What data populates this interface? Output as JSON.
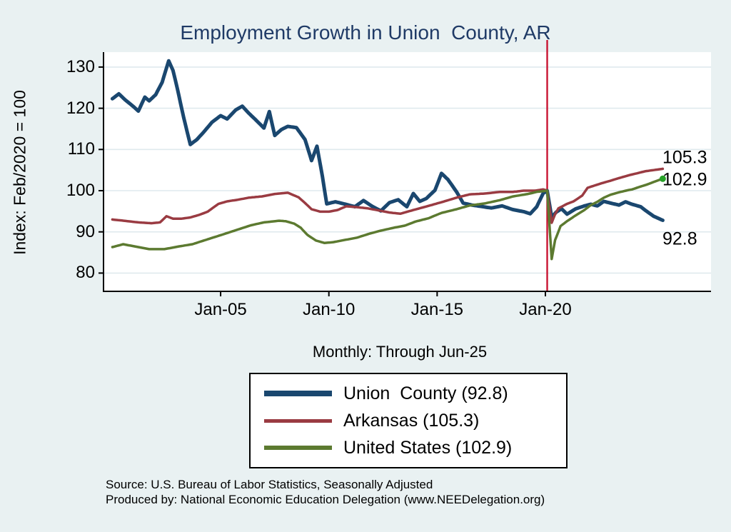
{
  "title": "Employment Growth in Union  County, AR",
  "subtitle": "Monthly: Through Jun-25",
  "y_axis_title": "Index: Feb/2020 = 100",
  "source_line1": "Source: U.S. Bureau of Labor Statistics, Seasonally Adjusted",
  "source_line2": "Produced by: National Economic Education Delegation (www.NEEDelegation.org)",
  "colors": {
    "background": "#e9f1f2",
    "plot_background": "#ffffff",
    "gridline": "#dfeaee",
    "axis": "#000000",
    "title_text": "#1f3a66",
    "union_county": "#1a476f",
    "arkansas": "#9a3b42",
    "united_states": "#5c7a30",
    "event_line": "#c81432",
    "end_marker": "#27a127"
  },
  "end_labels": {
    "arkansas": "105.3",
    "united_states": "102.9",
    "union_county": "92.8"
  },
  "legend": [
    {
      "label": "Union  County (92.8)",
      "series": "union_county",
      "color": "#1a476f",
      "swatch_height": 8
    },
    {
      "label": "Arkansas (105.3)",
      "series": "arkansas",
      "color": "#9a3b42",
      "swatch_height": 5
    },
    {
      "label": "United States (102.9)",
      "series": "united_states",
      "color": "#5c7a30",
      "swatch_height": 6
    }
  ],
  "chart_data": {
    "type": "line",
    "title": "Employment Growth in Union  County, AR",
    "subtitle": "Monthly: Through Jun-25",
    "ylabel": "Index: Feb/2020 = 100",
    "ylim": [
      76.5,
      134
    ],
    "xlim": [
      1999.8,
      2027.6
    ],
    "grid": "horizontal",
    "legend_position": "bottom",
    "y_ticks": [
      80,
      90,
      100,
      110,
      120,
      130
    ],
    "x_ticks": [
      {
        "label": "Jan-05",
        "t": 2005
      },
      {
        "label": "Jan-10",
        "t": 2010
      },
      {
        "label": "Jan-15",
        "t": 2015
      },
      {
        "label": "Jan-20",
        "t": 2020
      }
    ],
    "vline": {
      "t": 2020.083,
      "color": "#c81432",
      "meaning_label": ""
    },
    "series": [
      {
        "name": "Union  County (92.8)",
        "color": "#1a476f",
        "width": 5,
        "end_value": 92.8,
        "points": [
          [
            2000.0,
            122.3
          ],
          [
            2000.3,
            123.5
          ],
          [
            2000.6,
            122.0
          ],
          [
            2001.0,
            120.3
          ],
          [
            2001.2,
            119.3
          ],
          [
            2001.5,
            122.7
          ],
          [
            2001.7,
            121.8
          ],
          [
            2002.0,
            123.3
          ],
          [
            2002.3,
            126.3
          ],
          [
            2002.6,
            131.5
          ],
          [
            2002.8,
            129.2
          ],
          [
            2003.0,
            124.8
          ],
          [
            2003.3,
            117.6
          ],
          [
            2003.6,
            111.2
          ],
          [
            2003.9,
            112.4
          ],
          [
            2004.2,
            114.1
          ],
          [
            2004.6,
            116.6
          ],
          [
            2005.0,
            118.2
          ],
          [
            2005.3,
            117.4
          ],
          [
            2005.7,
            119.6
          ],
          [
            2006.0,
            120.5
          ],
          [
            2006.3,
            118.8
          ],
          [
            2006.6,
            117.3
          ],
          [
            2007.0,
            115.2
          ],
          [
            2007.25,
            119.2
          ],
          [
            2007.5,
            113.4
          ],
          [
            2007.8,
            114.8
          ],
          [
            2008.1,
            115.6
          ],
          [
            2008.5,
            115.3
          ],
          [
            2008.9,
            112.4
          ],
          [
            2009.2,
            107.3
          ],
          [
            2009.45,
            110.8
          ],
          [
            2009.7,
            103.5
          ],
          [
            2009.9,
            96.8
          ],
          [
            2010.3,
            97.3
          ],
          [
            2010.7,
            96.8
          ],
          [
            2011.2,
            96.1
          ],
          [
            2011.6,
            97.6
          ],
          [
            2012.0,
            96.2
          ],
          [
            2012.4,
            95.1
          ],
          [
            2012.8,
            97.1
          ],
          [
            2013.2,
            97.8
          ],
          [
            2013.6,
            96.1
          ],
          [
            2013.9,
            99.3
          ],
          [
            2014.2,
            97.4
          ],
          [
            2014.5,
            98.1
          ],
          [
            2014.9,
            100.1
          ],
          [
            2015.2,
            104.2
          ],
          [
            2015.5,
            102.7
          ],
          [
            2015.9,
            99.7
          ],
          [
            2016.2,
            97.0
          ],
          [
            2016.6,
            96.5
          ],
          [
            2017.0,
            96.2
          ],
          [
            2017.5,
            95.8
          ],
          [
            2018.0,
            96.3
          ],
          [
            2018.5,
            95.4
          ],
          [
            2019.0,
            94.9
          ],
          [
            2019.3,
            94.4
          ],
          [
            2019.6,
            96.1
          ],
          [
            2019.9,
            99.4
          ],
          [
            2020.083,
            100.0
          ],
          [
            2020.29,
            93.5
          ],
          [
            2020.5,
            94.8
          ],
          [
            2020.75,
            95.6
          ],
          [
            2021.0,
            94.3
          ],
          [
            2021.4,
            95.6
          ],
          [
            2021.8,
            96.3
          ],
          [
            2022.1,
            96.7
          ],
          [
            2022.4,
            96.3
          ],
          [
            2022.7,
            97.4
          ],
          [
            2023.0,
            97.0
          ],
          [
            2023.4,
            96.5
          ],
          [
            2023.7,
            97.3
          ],
          [
            2024.0,
            96.7
          ],
          [
            2024.4,
            96.1
          ],
          [
            2024.7,
            94.9
          ],
          [
            2025.0,
            93.8
          ],
          [
            2025.25,
            93.2
          ],
          [
            2025.42,
            92.8
          ]
        ]
      },
      {
        "name": "Arkansas (105.3)",
        "color": "#9a3b42",
        "width": 3.5,
        "end_value": 105.3,
        "points": [
          [
            2000.0,
            93.0
          ],
          [
            2000.7,
            92.6
          ],
          [
            2001.2,
            92.3
          ],
          [
            2001.8,
            92.1
          ],
          [
            2002.2,
            92.3
          ],
          [
            2002.5,
            93.8
          ],
          [
            2002.8,
            93.2
          ],
          [
            2003.2,
            93.2
          ],
          [
            2003.6,
            93.5
          ],
          [
            2004.0,
            94.1
          ],
          [
            2004.4,
            94.9
          ],
          [
            2004.9,
            96.8
          ],
          [
            2005.3,
            97.4
          ],
          [
            2005.8,
            97.8
          ],
          [
            2006.3,
            98.3
          ],
          [
            2006.9,
            98.6
          ],
          [
            2007.5,
            99.2
          ],
          [
            2008.1,
            99.5
          ],
          [
            2008.6,
            98.4
          ],
          [
            2008.9,
            97.0
          ],
          [
            2009.2,
            95.5
          ],
          [
            2009.6,
            94.9
          ],
          [
            2010.0,
            94.9
          ],
          [
            2010.4,
            95.3
          ],
          [
            2010.8,
            96.2
          ],
          [
            2011.3,
            96.0
          ],
          [
            2011.8,
            95.7
          ],
          [
            2012.3,
            95.2
          ],
          [
            2012.8,
            94.7
          ],
          [
            2013.3,
            94.4
          ],
          [
            2013.9,
            95.3
          ],
          [
            2014.6,
            96.3
          ],
          [
            2015.2,
            97.2
          ],
          [
            2015.9,
            98.3
          ],
          [
            2016.5,
            99.1
          ],
          [
            2017.2,
            99.3
          ],
          [
            2017.9,
            99.7
          ],
          [
            2018.5,
            99.7
          ],
          [
            2019.0,
            100.0
          ],
          [
            2019.5,
            100.0
          ],
          [
            2019.9,
            100.3
          ],
          [
            2020.083,
            100.0
          ],
          [
            2020.29,
            92.2
          ],
          [
            2020.45,
            94.3
          ],
          [
            2020.6,
            95.7
          ],
          [
            2021.0,
            96.8
          ],
          [
            2021.3,
            97.4
          ],
          [
            2021.7,
            98.8
          ],
          [
            2021.95,
            100.7
          ],
          [
            2022.3,
            101.3
          ],
          [
            2022.6,
            101.8
          ],
          [
            2023.0,
            102.4
          ],
          [
            2023.3,
            102.9
          ],
          [
            2023.9,
            103.8
          ],
          [
            2024.3,
            104.3
          ],
          [
            2024.6,
            104.7
          ],
          [
            2025.0,
            105.0
          ],
          [
            2025.42,
            105.3
          ]
        ]
      },
      {
        "name": "United States (102.9)",
        "color": "#5c7a30",
        "width": 3.5,
        "end_value": 102.9,
        "end_marker": {
          "color": "#27a127",
          "radius": 4.5
        },
        "points": [
          [
            2000.0,
            86.3
          ],
          [
            2000.5,
            87.0
          ],
          [
            2001.0,
            86.5
          ],
          [
            2001.7,
            85.8
          ],
          [
            2002.4,
            85.8
          ],
          [
            2003.0,
            86.4
          ],
          [
            2003.7,
            87.0
          ],
          [
            2004.4,
            88.2
          ],
          [
            2005.0,
            89.2
          ],
          [
            2005.7,
            90.4
          ],
          [
            2006.4,
            91.6
          ],
          [
            2007.0,
            92.3
          ],
          [
            2007.7,
            92.7
          ],
          [
            2008.0,
            92.6
          ],
          [
            2008.4,
            92.0
          ],
          [
            2008.7,
            91.0
          ],
          [
            2009.0,
            89.3
          ],
          [
            2009.4,
            87.9
          ],
          [
            2009.8,
            87.3
          ],
          [
            2010.2,
            87.5
          ],
          [
            2010.7,
            88.0
          ],
          [
            2011.3,
            88.6
          ],
          [
            2011.9,
            89.6
          ],
          [
            2012.4,
            90.3
          ],
          [
            2013.0,
            91.0
          ],
          [
            2013.5,
            91.5
          ],
          [
            2014.0,
            92.5
          ],
          [
            2014.6,
            93.3
          ],
          [
            2015.2,
            94.6
          ],
          [
            2015.9,
            95.5
          ],
          [
            2016.5,
            96.4
          ],
          [
            2017.2,
            96.9
          ],
          [
            2017.9,
            97.7
          ],
          [
            2018.5,
            98.6
          ],
          [
            2019.2,
            99.2
          ],
          [
            2019.6,
            99.7
          ],
          [
            2020.083,
            100.0
          ],
          [
            2020.29,
            83.4
          ],
          [
            2020.45,
            88.0
          ],
          [
            2020.7,
            91.4
          ],
          [
            2021.0,
            92.6
          ],
          [
            2021.4,
            94.0
          ],
          [
            2021.8,
            95.3
          ],
          [
            2022.1,
            96.5
          ],
          [
            2022.4,
            97.3
          ],
          [
            2022.7,
            98.3
          ],
          [
            2023.0,
            99.0
          ],
          [
            2023.4,
            99.6
          ],
          [
            2023.8,
            100.1
          ],
          [
            2024.0,
            100.3
          ],
          [
            2024.4,
            101.0
          ],
          [
            2024.7,
            101.5
          ],
          [
            2025.0,
            102.1
          ],
          [
            2025.2,
            102.5
          ],
          [
            2025.42,
            102.9
          ]
        ]
      }
    ]
  }
}
